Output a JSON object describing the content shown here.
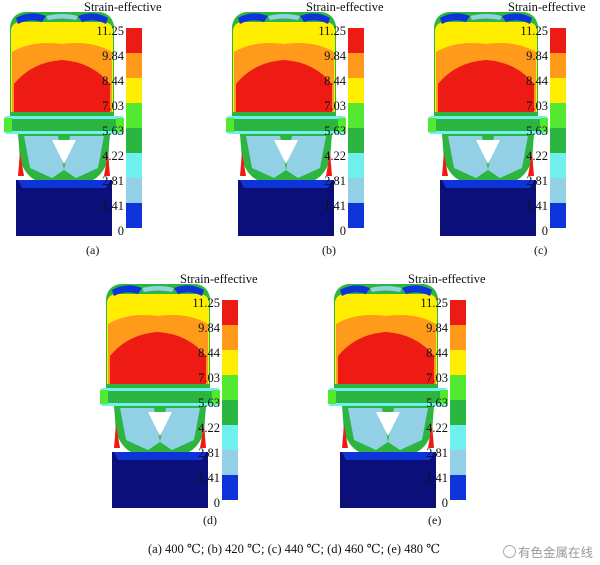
{
  "legend_title": "Strain-effective",
  "legend_ticks": [
    "11.25",
    "9.84",
    "8.44",
    "7.03",
    "5.63",
    "4.22",
    "2.81",
    "1.41",
    "0"
  ],
  "colors": {
    "red": "#ee1b14",
    "orange": "#ff9a1a",
    "yellow": "#ffee00",
    "lightgreen": "#55e832",
    "green": "#2cb540",
    "cyan": "#6ff0ef",
    "lightblue": "#92d0e6",
    "blue": "#0e33d8",
    "navy": "#0a0f7a"
  },
  "panels": [
    {
      "label": "(a)"
    },
    {
      "label": "(b)"
    },
    {
      "label": "(c)"
    },
    {
      "label": "(d)"
    },
    {
      "label": "(e)"
    }
  ],
  "caption": "(a) 400 ℃; (b) 420 ℃; (c) 440 ℃; (d) 460 ℃; (e) 480 ℃",
  "watermark": "有色金属在线"
}
